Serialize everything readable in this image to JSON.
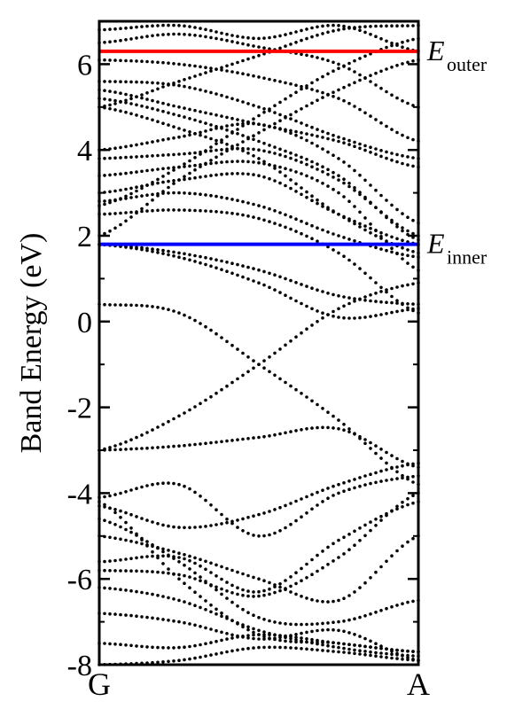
{
  "chart_data": {
    "type": "scatter",
    "title": "",
    "xlabel": "",
    "ylabel": "Band Energy (eV)",
    "xlim": [
      0,
      1
    ],
    "ylim": [
      -8,
      7
    ],
    "x_ticks": [
      {
        "value": 0,
        "label": "G"
      },
      {
        "value": 1,
        "label": "A"
      }
    ],
    "y_ticks": [
      {
        "value": -8,
        "label": "-8"
      },
      {
        "value": -6,
        "label": "-6"
      },
      {
        "value": -4,
        "label": "-4"
      },
      {
        "value": -2,
        "label": "-2"
      },
      {
        "value": 0,
        "label": "0"
      },
      {
        "value": 2,
        "label": "2"
      },
      {
        "value": 4,
        "label": "4"
      },
      {
        "value": 6,
        "label": "6"
      }
    ],
    "grid": false,
    "reference_lines": [
      {
        "y": 6.3,
        "color": "#ff0000",
        "label_main": "E",
        "label_sub": "outer"
      },
      {
        "y": 1.8,
        "color": "#0000ff",
        "label_main": "E",
        "label_sub": "inner"
      }
    ],
    "marker_color": "#000000",
    "bands": [
      {
        "name": "b1",
        "x": [
          0,
          0.25,
          0.5,
          0.75,
          1
        ],
        "y": [
          -8.0,
          -7.9,
          -7.6,
          -7.7,
          -7.9
        ]
      },
      {
        "name": "b2",
        "x": [
          0,
          0.25,
          0.5,
          0.75,
          1
        ],
        "y": [
          -7.5,
          -7.6,
          -7.3,
          -7.5,
          -7.7
        ]
      },
      {
        "name": "b3",
        "x": [
          0,
          0.25,
          0.5,
          0.75,
          1
        ],
        "y": [
          -6.8,
          -7.0,
          -7.4,
          -7.2,
          -7.9
        ]
      },
      {
        "name": "b4",
        "x": [
          0,
          0.25,
          0.5,
          0.75,
          1
        ],
        "y": [
          -6.2,
          -6.5,
          -7.2,
          -7.6,
          -7.8
        ]
      },
      {
        "name": "b5",
        "x": [
          0,
          0.25,
          0.5,
          0.75,
          1
        ],
        "y": [
          -5.8,
          -5.9,
          -6.4,
          -5.5,
          -4.0
        ]
      },
      {
        "name": "b6",
        "x": [
          0,
          0.25,
          0.5,
          0.75,
          1
        ],
        "y": [
          -5.6,
          -5.5,
          -6.3,
          -5.1,
          -4.2
        ]
      },
      {
        "name": "b7",
        "x": [
          0,
          0.25,
          0.5,
          0.75,
          1
        ],
        "y": [
          -5.0,
          -5.4,
          -6.0,
          -6.5,
          -5.0
        ]
      },
      {
        "name": "b8",
        "x": [
          0,
          0.25,
          0.5,
          0.75,
          1
        ],
        "y": [
          -4.6,
          -5.6,
          -6.9,
          -7.0,
          -6.5
        ]
      },
      {
        "name": "b9",
        "x": [
          0,
          0.25,
          0.5,
          0.75,
          1
        ],
        "y": [
          -4.3,
          -4.8,
          -4.5,
          -3.8,
          -3.3
        ]
      },
      {
        "name": "b10",
        "x": [
          0,
          0.25,
          0.5,
          0.75,
          1
        ],
        "y": [
          -4.2,
          -6.0,
          -7.3,
          -7.5,
          -7.7
        ]
      },
      {
        "name": "b11",
        "x": [
          0,
          0.25,
          0.5,
          0.75,
          1
        ],
        "y": [
          -4.1,
          -3.8,
          -5.0,
          -4.0,
          -3.6
        ]
      },
      {
        "name": "b12",
        "x": [
          0,
          0.25,
          0.5,
          0.75,
          1
        ],
        "y": [
          -3.0,
          -2.9,
          -2.7,
          -2.5,
          -3.4
        ]
      },
      {
        "name": "b13",
        "x": [
          0,
          0.25,
          0.5,
          0.75,
          1
        ],
        "y": [
          0.4,
          0.2,
          -1.0,
          -2.3,
          -3.8
        ]
      },
      {
        "name": "b14",
        "x": [
          0,
          0.25,
          0.5,
          0.75,
          1
        ],
        "y": [
          -3.0,
          -2.2,
          -1.0,
          0.3,
          0.9
        ]
      },
      {
        "name": "b15",
        "x": [
          0,
          0.25,
          0.5,
          0.75,
          1
        ],
        "y": [
          1.8,
          1.5,
          0.9,
          0.1,
          0.3
        ]
      },
      {
        "name": "b16",
        "x": [
          0,
          0.25,
          0.5,
          0.75,
          1
        ],
        "y": [
          1.8,
          1.6,
          1.2,
          0.6,
          0.4
        ]
      },
      {
        "name": "b17",
        "x": [
          0,
          0.25,
          0.5,
          0.75,
          1
        ],
        "y": [
          2.5,
          2.6,
          2.4,
          1.6,
          0.2
        ]
      },
      {
        "name": "b18",
        "x": [
          0,
          0.25,
          0.5,
          0.75,
          1
        ],
        "y": [
          2.8,
          3.0,
          2.7,
          2.0,
          1.5
        ]
      },
      {
        "name": "b19",
        "x": [
          0,
          0.25,
          0.5,
          0.75,
          1
        ],
        "y": [
          3.0,
          3.3,
          3.4,
          2.5,
          1.8
        ]
      },
      {
        "name": "b20",
        "x": [
          0,
          0.25,
          0.5,
          0.75,
          1
        ],
        "y": [
          3.4,
          3.6,
          3.7,
          3.0,
          1.2
        ]
      },
      {
        "name": "b21",
        "x": [
          0,
          0.25,
          0.5,
          0.75,
          1
        ],
        "y": [
          3.8,
          3.9,
          4.0,
          3.3,
          2.0
        ]
      },
      {
        "name": "b22",
        "x": [
          0,
          0.25,
          0.5,
          0.75,
          1
        ],
        "y": [
          4.0,
          4.3,
          4.6,
          3.8,
          2.3
        ]
      },
      {
        "name": "b23",
        "x": [
          0,
          0.25,
          0.5,
          0.75,
          1
        ],
        "y": [
          5.0,
          4.5,
          3.8,
          2.5,
          1.6
        ]
      },
      {
        "name": "b24",
        "x": [
          0,
          0.25,
          0.5,
          0.75,
          1
        ],
        "y": [
          5.2,
          4.8,
          4.2,
          3.4,
          1.9
        ]
      },
      {
        "name": "b25",
        "x": [
          0,
          0.25,
          0.5,
          0.75,
          1
        ],
        "y": [
          5.4,
          5.0,
          4.6,
          4.2,
          3.6
        ]
      },
      {
        "name": "b26",
        "x": [
          0,
          0.25,
          0.5,
          0.75,
          1
        ],
        "y": [
          2.0,
          3.3,
          4.4,
          5.4,
          6.1
        ]
      },
      {
        "name": "b27",
        "x": [
          0,
          0.25,
          0.5,
          0.75,
          1
        ],
        "y": [
          2.7,
          3.6,
          4.8,
          5.9,
          6.6
        ]
      },
      {
        "name": "b28",
        "x": [
          0,
          0.25,
          0.5,
          0.75,
          1
        ],
        "y": [
          5.6,
          5.5,
          5.0,
          4.3,
          3.8
        ]
      },
      {
        "name": "b29",
        "x": [
          0,
          0.25,
          0.5,
          0.75,
          1
        ],
        "y": [
          6.1,
          6.0,
          5.7,
          5.2,
          4.2
        ]
      },
      {
        "name": "b30",
        "x": [
          0,
          0.25,
          0.5,
          0.75,
          1
        ],
        "y": [
          6.5,
          6.7,
          6.4,
          6.0,
          5.0
        ]
      },
      {
        "name": "b31",
        "x": [
          0,
          0.25,
          0.5,
          0.75,
          1
        ],
        "y": [
          6.8,
          6.9,
          6.6,
          6.9,
          6.3
        ]
      },
      {
        "name": "b32",
        "x": [
          0,
          0.25,
          0.5,
          0.75,
          1
        ],
        "y": [
          5.0,
          5.6,
          6.2,
          6.8,
          6.9
        ]
      }
    ]
  }
}
